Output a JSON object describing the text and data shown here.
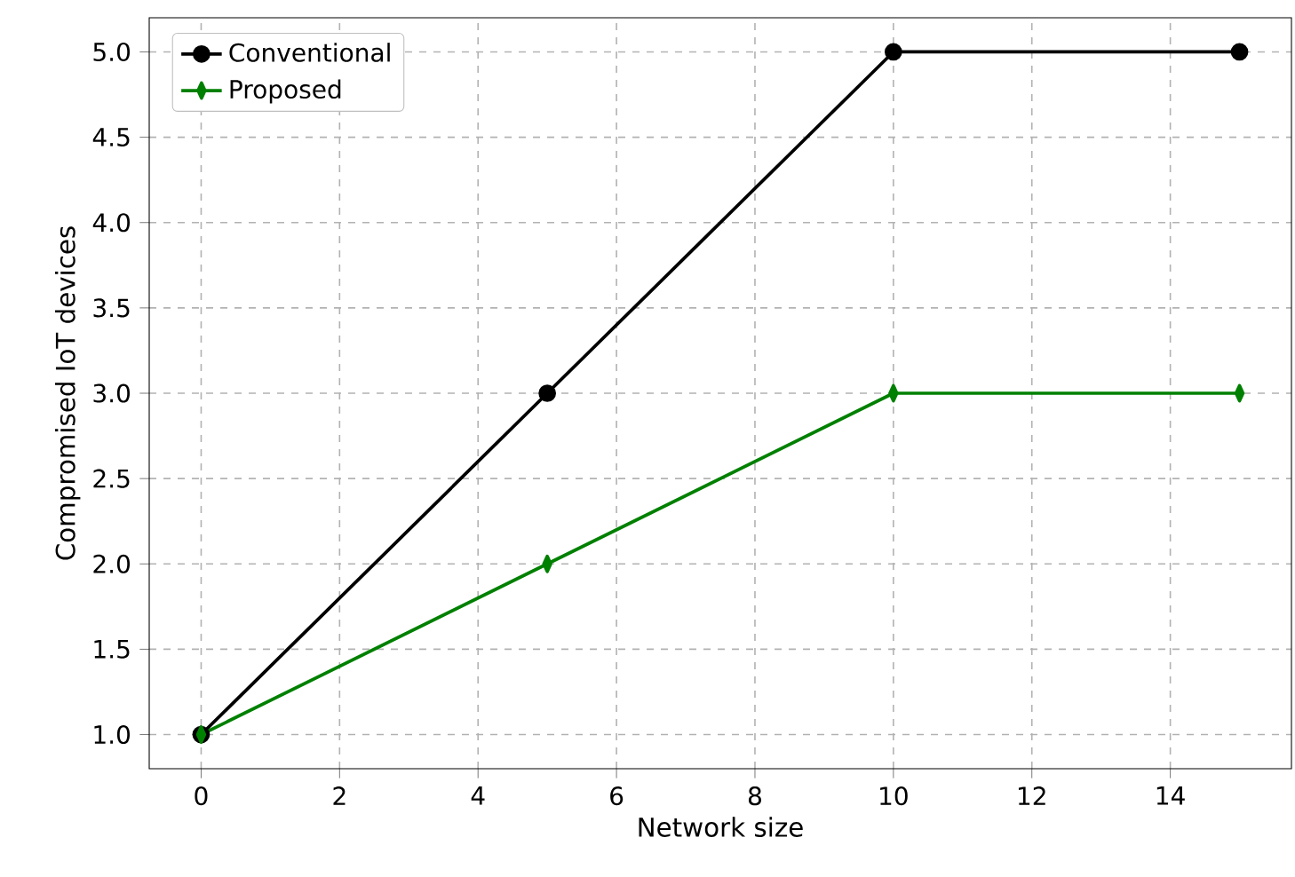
{
  "chart_data": {
    "type": "line",
    "xlabel": "Network size",
    "ylabel": "Compromised IoT devices",
    "x": [
      0,
      5,
      10,
      15
    ],
    "series": [
      {
        "name": "Conventional",
        "color": "#000000",
        "marker": "circle",
        "values": [
          1,
          3,
          5,
          5
        ]
      },
      {
        "name": "Proposed",
        "color": "#008000",
        "marker": "diamond",
        "values": [
          1,
          2,
          3,
          3
        ]
      }
    ],
    "xlim": [
      -0.75,
      15.75
    ],
    "ylim": [
      0.8,
      5.2
    ],
    "xticks": [
      0,
      2,
      4,
      6,
      8,
      10,
      12,
      14
    ],
    "yticks": [
      {
        "value": 1,
        "label": "1.0"
      },
      {
        "value": 1.5,
        "label": "1.5"
      },
      {
        "value": 2,
        "label": "2.0"
      },
      {
        "value": 2.5,
        "label": "2.5"
      },
      {
        "value": 3,
        "label": "3.0"
      },
      {
        "value": 3.5,
        "label": "3.5"
      },
      {
        "value": 4,
        "label": "4.0"
      },
      {
        "value": 4.5,
        "label": "4.5"
      },
      {
        "value": 5,
        "label": "5.0"
      }
    ],
    "grid": true,
    "legend": "top left",
    "line_style": "solid"
  }
}
